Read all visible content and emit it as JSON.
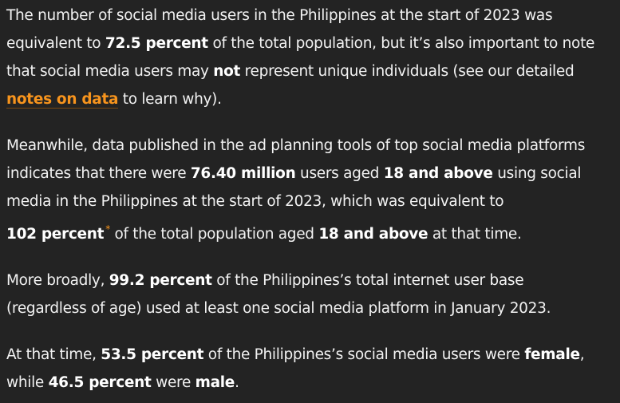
{
  "paragraphs": [
    [
      [
        {
          "t": "The number of social media users in the Philippines at the start of 2023 was"
        }
      ],
      [
        {
          "t": "equivalent to "
        },
        {
          "t": "72.5 percent",
          "s": "b"
        },
        {
          "t": " of the total population, but it’s also important to note"
        }
      ],
      [
        {
          "t": "that social media users may "
        },
        {
          "t": "not",
          "s": "b"
        },
        {
          "t": " represent unique individuals (see our detailed"
        }
      ],
      [
        {
          "t": "notes on data",
          "s": "a"
        },
        {
          "t": " to learn why)."
        }
      ]
    ],
    [
      [
        {
          "t": "Meanwhile, data published in the ad planning tools of top social media platforms"
        }
      ],
      [
        {
          "t": "indicates that there were "
        },
        {
          "t": "76.40 million",
          "s": "b"
        },
        {
          "t": " users aged "
        },
        {
          "t": "18 and above",
          "s": "b"
        },
        {
          "t": " using social"
        }
      ],
      [
        {
          "t": "media in the Philippines at the start of 2023, which was equivalent to"
        }
      ],
      [
        {
          "t": "102 percent",
          "s": "b"
        },
        {
          "t": "*",
          "s": "sup"
        },
        {
          "t": " of the total population aged "
        },
        {
          "t": "18 and above",
          "s": "b"
        },
        {
          "t": " at that time."
        }
      ]
    ],
    [
      [
        {
          "t": "More broadly, "
        },
        {
          "t": "99.2 percent",
          "s": "b"
        },
        {
          "t": " of the Philippines’s total internet user base"
        }
      ],
      [
        {
          "t": "(regardless of age) used at least one social media platform in January 2023."
        }
      ]
    ],
    [
      [
        {
          "t": "At that time, "
        },
        {
          "t": "53.5 percent",
          "s": "b"
        },
        {
          "t": " of the Philippines’s social media users were "
        },
        {
          "t": "female",
          "s": "b"
        },
        {
          "t": ","
        }
      ],
      [
        {
          "t": "while "
        },
        {
          "t": "46.5 percent",
          "s": "b"
        },
        {
          "t": " were "
        },
        {
          "t": "male",
          "s": "b"
        },
        {
          "t": "."
        }
      ]
    ]
  ],
  "colors": {
    "background": "#232323",
    "text": "#f2f2f2",
    "link": "#f7941d"
  }
}
